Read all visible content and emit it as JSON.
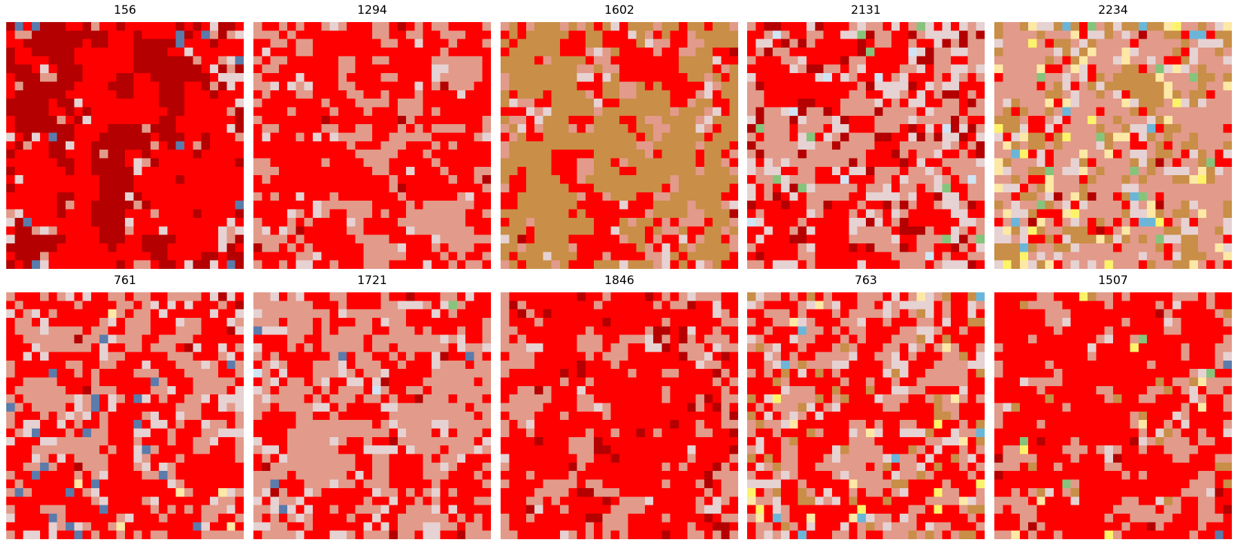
{
  "palette": {
    "darkred": "#b40000",
    "red": "#ff0000",
    "salmon": "#e29a8a",
    "pinkgray": "#e6d2d2",
    "tan": "#c98e47",
    "steelblue": "#5b7bab",
    "lightyellow": "#fde8a6",
    "yellow": "#fdf36a",
    "green": "#86c47c",
    "skyblue": "#6bb6d8",
    "paleblue": "#cfe5f5",
    "khaki": "#dccd93",
    "lightgreen": "#c8e3a4"
  },
  "panels": [
    {
      "title": "156",
      "seed": 156,
      "p": {
        "darkred": 0.38,
        "red": 0.44,
        "salmon": 0.08,
        "pinkgray": 0.08,
        "steelblue": 0.02
      },
      "smooth": 2
    },
    {
      "title": "1294",
      "seed": 1294,
      "p": {
        "red": 0.52,
        "salmon": 0.4,
        "pinkgray": 0.06,
        "darkred": 0.02
      },
      "smooth": 1
    },
    {
      "title": "1602",
      "seed": 1602,
      "p": {
        "tan": 0.42,
        "red": 0.3,
        "salmon": 0.22,
        "pinkgray": 0.05,
        "darkred": 0.01
      },
      "smooth": 2
    },
    {
      "title": "2131",
      "seed": 2131,
      "p": {
        "red": 0.34,
        "salmon": 0.32,
        "pinkgray": 0.18,
        "darkred": 0.12,
        "green": 0.02,
        "paleblue": 0.02
      },
      "smooth": 2
    },
    {
      "title": "2234",
      "seed": 2234,
      "p": {
        "salmon": 0.36,
        "tan": 0.24,
        "pinkgray": 0.14,
        "red": 0.12,
        "lightyellow": 0.08,
        "yellow": 0.02,
        "green": 0.02,
        "skyblue": 0.01,
        "darkred": 0.01
      },
      "smooth": 2
    },
    {
      "title": "761",
      "seed": 761,
      "p": {
        "red": 0.46,
        "salmon": 0.34,
        "pinkgray": 0.14,
        "steelblue": 0.03,
        "lightyellow": 0.02,
        "darkred": 0.01
      },
      "smooth": 1
    },
    {
      "title": "1721",
      "seed": 1721,
      "p": {
        "salmon": 0.46,
        "red": 0.38,
        "pinkgray": 0.12,
        "darkred": 0.02,
        "steelblue": 0.01,
        "paleblue": 0.005,
        "green": 0.005
      },
      "smooth": 1
    },
    {
      "title": "1846",
      "seed": 1846,
      "p": {
        "red": 0.54,
        "salmon": 0.32,
        "darkred": 0.1,
        "pinkgray": 0.04
      },
      "smooth": 1
    },
    {
      "title": "763",
      "seed": 763,
      "p": {
        "red": 0.44,
        "salmon": 0.32,
        "pinkgray": 0.12,
        "tan": 0.08,
        "lightyellow": 0.02,
        "skyblue": 0.01,
        "yellow": 0.01
      },
      "smooth": 1
    },
    {
      "title": "1507",
      "seed": 1507,
      "p": {
        "red": 0.56,
        "salmon": 0.3,
        "pinkgray": 0.05,
        "tan": 0.04,
        "darkred": 0.02,
        "green": 0.01,
        "steelblue": 0.01,
        "lightyellow": 0.005,
        "yellow": 0.005
      },
      "smooth": 1
    }
  ]
}
